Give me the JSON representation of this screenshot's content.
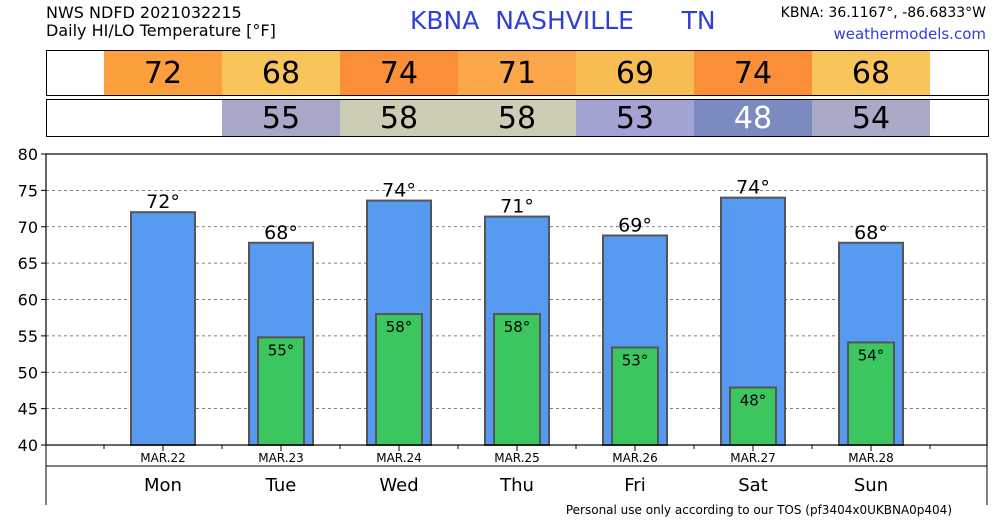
{
  "header": {
    "product": "NWS NDFD 2021032215",
    "subtitle": "Daily HI/LO Temperature [°F]",
    "station_id": "KBNA",
    "station_name": "NASHVILLE",
    "state": "TN",
    "coords": "KBNA: 36.1167°, -86.6833°W",
    "site": "weathermodels.com"
  },
  "footer": "Personal use only according to our TOS (pf3404x0UKBNA0p404)",
  "colors": {
    "high_bar": "#5599f0",
    "low_bar": "#3cc65f",
    "header_blue": "#2f3fd8"
  },
  "hi_strip_colors": [
    "#fb9e3c",
    "#f8c55a",
    "#fb8f38",
    "#fba648",
    "#f8bd52",
    "#fb8f38",
    "#f8c55a"
  ],
  "lo_strip_colors": [
    "",
    "#a7a7c8",
    "#cdcdb5",
    "#cdcdb5",
    "#a3a3d3",
    "#7b8ac0",
    "#a9a9c8"
  ],
  "chart_data": {
    "type": "bar",
    "categories": [
      "Mon",
      "Tue",
      "Wed",
      "Thu",
      "Fri",
      "Sat",
      "Sun"
    ],
    "dates": [
      "MAR.22",
      "MAR.23",
      "MAR.24",
      "MAR.25",
      "MAR.26",
      "MAR.27",
      "MAR.28"
    ],
    "series": [
      {
        "values": [
          72,
          68,
          74,
          71,
          69,
          74,
          68
        ]
      },
      {
        "values": [
          null,
          55,
          58,
          58,
          53,
          48,
          54
        ]
      }
    ],
    "hi_labels": [
      "72°",
      "68°",
      "74°",
      "71°",
      "69°",
      "74°",
      "68°"
    ],
    "lo_labels": [
      "",
      "55°",
      "58°",
      "58°",
      "53°",
      "48°",
      "54°"
    ],
    "hi_strip": [
      "72",
      "68",
      "74",
      "71",
      "69",
      "74",
      "68"
    ],
    "lo_strip": [
      "",
      "55",
      "58",
      "58",
      "53",
      "48",
      "54"
    ],
    "ylim": [
      40,
      80
    ],
    "yticks": [
      "40",
      "45",
      "50",
      "55",
      "60",
      "65",
      "70",
      "75",
      "80"
    ],
    "grid": true,
    "bar_values_exact": {
      "hi": [
        72.0,
        67.8,
        73.6,
        71.4,
        68.8,
        74.0,
        67.8
      ],
      "lo": [
        null,
        54.8,
        58.0,
        58.0,
        53.4,
        47.9,
        54.1
      ]
    }
  }
}
